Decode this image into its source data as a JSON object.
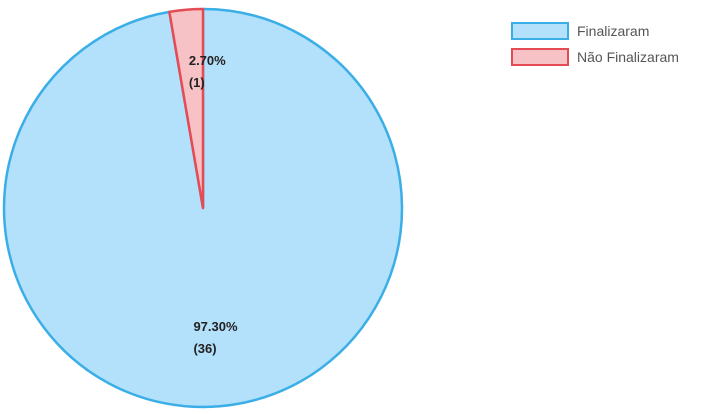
{
  "chart_data": {
    "type": "pie",
    "series": [
      {
        "name": "Finalizaram",
        "value": 36,
        "percent_label": "97.30%",
        "count_label": "(36)",
        "fill": "#b3e0fa",
        "stroke": "#3aaee6"
      },
      {
        "name": "Não Finalizaram",
        "value": 1,
        "percent_label": "2.70%",
        "count_label": "(1)",
        "fill": "#f7c2c6",
        "stroke": "#e54b55"
      }
    ],
    "legend": {
      "position": "top-right"
    }
  }
}
